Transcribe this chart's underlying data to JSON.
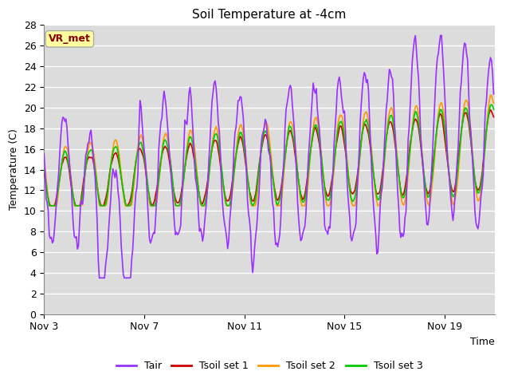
{
  "title": "Soil Temperature at -4cm",
  "xlabel": "Time",
  "ylabel": "Temperature (C)",
  "ylim": [
    0,
    28
  ],
  "yticks": [
    0,
    2,
    4,
    6,
    8,
    10,
    12,
    14,
    16,
    18,
    20,
    22,
    24,
    26,
    28
  ],
  "xtick_labels": [
    "Nov 3",
    "Nov 7",
    "Nov 11",
    "Nov 15",
    "Nov 19"
  ],
  "colors": {
    "Tair": "#9B30FF",
    "Tsoil1": "#CC0000",
    "Tsoil2": "#FF9900",
    "Tsoil3": "#00CC00"
  },
  "legend_labels": [
    "Tair",
    "Tsoil set 1",
    "Tsoil set 2",
    "Tsoil set 3"
  ],
  "annotation_text": "VR_met",
  "annotation_bg": "#FFFFA0",
  "annotation_border": "#AAAAAA",
  "bg_color": "#DCDCDC",
  "line_width": 1.2
}
